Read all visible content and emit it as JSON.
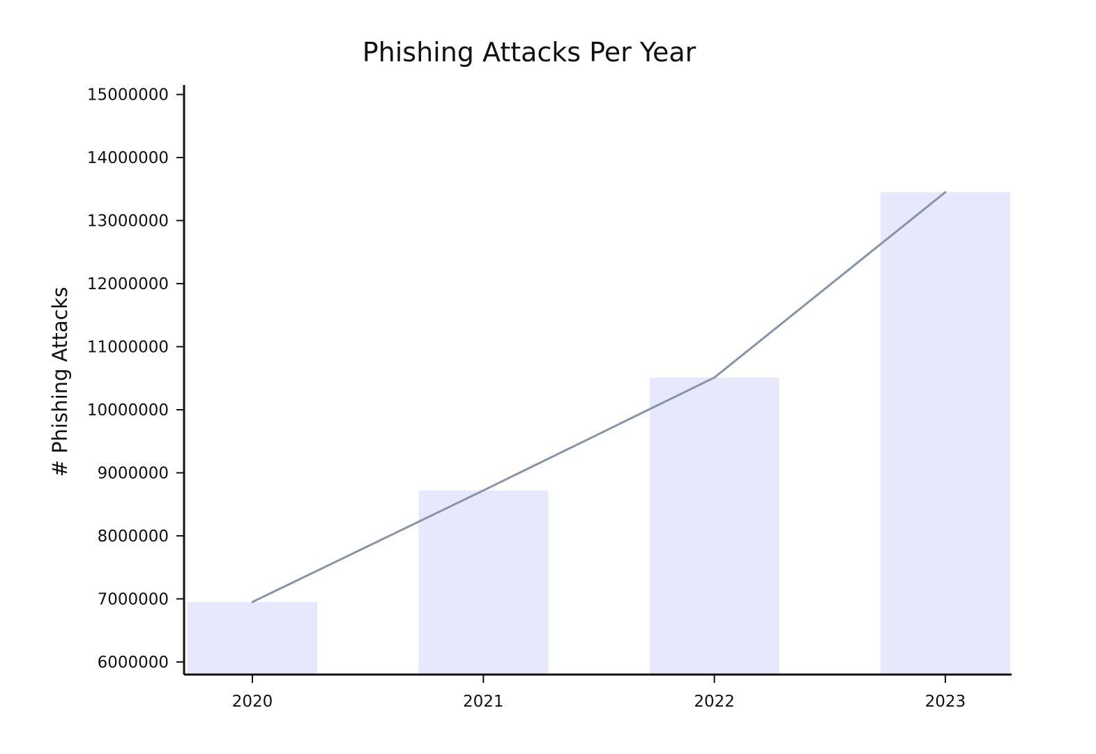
{
  "chart_data": {
    "type": "bar",
    "title": "Phishing Attacks Per Year",
    "xlabel": "",
    "ylabel": "# Phishing Attacks",
    "categories": [
      "2020",
      "2021",
      "2022",
      "2023"
    ],
    "series": [
      {
        "type": "bar",
        "values": [
          6950000,
          8720000,
          10510000,
          13450000
        ]
      },
      {
        "type": "line",
        "values": [
          6950000,
          8720000,
          10510000,
          13450000
        ]
      }
    ],
    "ylim": [
      5800000,
      15150000
    ],
    "yticks": [
      "6000000",
      "7000000",
      "8000000",
      "9000000",
      "10000000",
      "11000000",
      "12000000",
      "13000000",
      "14000000",
      "15000000"
    ],
    "grid": false,
    "legend": "none",
    "colors": {
      "bar": "#e8e8fc",
      "line": "#8894a6",
      "axis": "#111111",
      "text": "#111111"
    }
  }
}
